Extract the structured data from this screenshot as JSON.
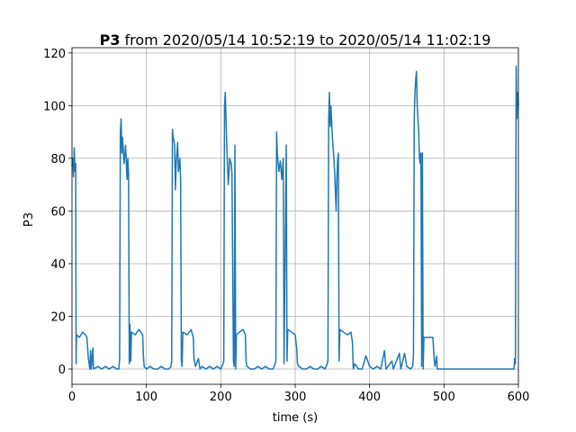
{
  "chart_data": {
    "type": "line",
    "title": {
      "bold": "P3",
      "text": "from 2020/05/14 10:52:19 to 2020/05/14 11:02:19"
    },
    "x_label": "time (s)",
    "y_label": "P3",
    "x": [
      0,
      1,
      2,
      3,
      4,
      5,
      5.5,
      6,
      10,
      14,
      18,
      20,
      21,
      22,
      24,
      25,
      26,
      28,
      29,
      35,
      40,
      45,
      50,
      55,
      60,
      62,
      63,
      64,
      65,
      66,
      67,
      68,
      70,
      72,
      74,
      75,
      76,
      77,
      78,
      79,
      80,
      85,
      90,
      95,
      96,
      97,
      100,
      105,
      110,
      115,
      120,
      125,
      130,
      133,
      134,
      135,
      136,
      138,
      139,
      140,
      142,
      143,
      145,
      146,
      147,
      148,
      149,
      155,
      160,
      163,
      164,
      166,
      170,
      172,
      175,
      180,
      185,
      190,
      195,
      200,
      203,
      204,
      205,
      206,
      207,
      208,
      210,
      212,
      214,
      215,
      217,
      218,
      219,
      220,
      221,
      225,
      230,
      233,
      234,
      235,
      240,
      245,
      250,
      255,
      260,
      265,
      270,
      273,
      274,
      275,
      276,
      278,
      280,
      282,
      284,
      285,
      288,
      289,
      290,
      295,
      300,
      302,
      303,
      305,
      310,
      315,
      320,
      325,
      330,
      335,
      340,
      343,
      344,
      345,
      346,
      347,
      348,
      350,
      352,
      353,
      355,
      356,
      357,
      358,
      359,
      360,
      365,
      370,
      375,
      377,
      378,
      380,
      385,
      390,
      395,
      400,
      405,
      410,
      415,
      420,
      422,
      430,
      432,
      440,
      442,
      447,
      450,
      455,
      458,
      459,
      460,
      461,
      462,
      463,
      464,
      466,
      467,
      468,
      469,
      470,
      471,
      472,
      473,
      480,
      485,
      487,
      488,
      490,
      491,
      500,
      550,
      590,
      594,
      595,
      596,
      597,
      598,
      599,
      600
    ],
    "series": [
      {
        "name": "P3",
        "color": "#1f77b4",
        "values": [
          77,
          80,
          73,
          84,
          75,
          78,
          2,
          13,
          12,
          14,
          13,
          12,
          8,
          4,
          0,
          7,
          0,
          8,
          0,
          1,
          0,
          1,
          0,
          1,
          0,
          0,
          0,
          4,
          90,
          95,
          82,
          88,
          78,
          85,
          72,
          80,
          74,
          2,
          17,
          3,
          14,
          13,
          15,
          13,
          5,
          1,
          0,
          1,
          0,
          0,
          1,
          0,
          0,
          1,
          3,
          91,
          88,
          85,
          68,
          78,
          86,
          75,
          80,
          72,
          3,
          1,
          14,
          13,
          15,
          12,
          4,
          1,
          4,
          0,
          1,
          0,
          1,
          0,
          1,
          0,
          2,
          3,
          100,
          105,
          95,
          85,
          70,
          80,
          78,
          74,
          3,
          1,
          85,
          0,
          13,
          14,
          15,
          13,
          3,
          1,
          0,
          0,
          1,
          0,
          1,
          0,
          0,
          2,
          3,
          90,
          82,
          75,
          79,
          72,
          80,
          2,
          85,
          3,
          15,
          14,
          13,
          8,
          2,
          1,
          0,
          0,
          1,
          0,
          0,
          1,
          0,
          2,
          3,
          95,
          105,
          92,
          100,
          88,
          80,
          75,
          60,
          72,
          79,
          82,
          3,
          15,
          14,
          13,
          14,
          10,
          0,
          2,
          0,
          0,
          5,
          1,
          0,
          1,
          0,
          7,
          0,
          3,
          0,
          6,
          0,
          6,
          1,
          0,
          1,
          6,
          95,
          105,
          110,
          113,
          100,
          90,
          80,
          78,
          82,
          1,
          82,
          0,
          12,
          12,
          12,
          3,
          1,
          5,
          0,
          0,
          0,
          0,
          0,
          4,
          2,
          115,
          95,
          105,
          100
        ]
      }
    ],
    "xlim": [
      0,
      600
    ],
    "xticks": [
      0,
      100,
      200,
      300,
      400,
      500,
      600
    ],
    "ylim": [
      -5.8,
      122
    ],
    "yticks": [
      0,
      20,
      40,
      60,
      80,
      100,
      120
    ],
    "grid": true
  }
}
